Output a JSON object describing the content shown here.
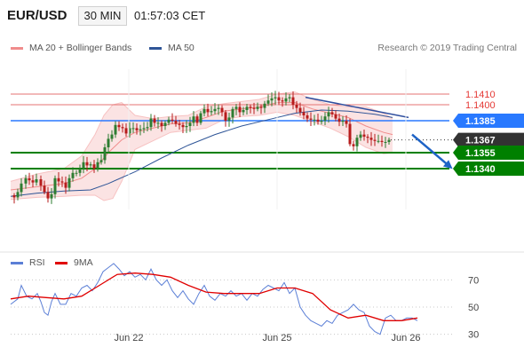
{
  "header": {
    "symbol": "EUR/USD",
    "timeframe": "30 MIN",
    "time": "01:57:03 CET"
  },
  "legend": {
    "bollinger_label": "MA 20 + Bollinger Bands",
    "ma50_label": "MA 50",
    "credit": "Research © 2019 Trading Central"
  },
  "rsi_legend": {
    "rsi_label": "RSI",
    "ma_label": "9MA"
  },
  "colors": {
    "up": "#2e7d32",
    "down": "#b71c1c",
    "bollinger": "#f4a6a6",
    "ma50": "#2f5597",
    "resistance": "#e57373",
    "pivot": "#2979ff",
    "support": "#008000",
    "current": "#333333",
    "rsi": "#5b7fd6",
    "rsi_ma": "#e00000"
  },
  "chart_data": [
    {
      "type": "candlestick",
      "series": [
        {
          "name": "MA 20 + Bollinger Bands"
        },
        {
          "name": "MA 50"
        }
      ],
      "x_ticks": [
        "Jun 22",
        "Jun 25",
        "Jun 26"
      ],
      "ylim": [
        1.1305,
        1.144
      ],
      "levels": [
        {
          "value": 1.141,
          "label": "1.1410",
          "kind": "resistance"
        },
        {
          "value": 1.14,
          "label": "1.1400",
          "kind": "resistance"
        },
        {
          "value": 1.1385,
          "label": "1.1385",
          "kind": "pivot"
        },
        {
          "value": 1.1367,
          "label": "1.1367",
          "kind": "current"
        },
        {
          "value": 1.1355,
          "label": "1.1355",
          "kind": "support"
        },
        {
          "value": 1.134,
          "label": "1.1340",
          "kind": "support"
        }
      ],
      "close_path": [
        [
          0,
          1.1315
        ],
        [
          6,
          1.1313
        ],
        [
          10,
          1.1318
        ],
        [
          14,
          1.1326
        ],
        [
          19,
          1.1331
        ],
        [
          23,
          1.1329
        ],
        [
          27,
          1.1327
        ],
        [
          31,
          1.133
        ],
        [
          36,
          1.1324
        ],
        [
          40,
          1.1318
        ],
        [
          44,
          1.1312
        ],
        [
          48,
          1.1316
        ],
        [
          52,
          1.1331
        ],
        [
          56,
          1.1328
        ],
        [
          60,
          1.1327
        ],
        [
          64,
          1.1322
        ],
        [
          68,
          1.1331
        ],
        [
          72,
          1.1336
        ],
        [
          76,
          1.1336
        ],
        [
          80,
          1.134
        ],
        [
          84,
          1.1346
        ],
        [
          88,
          1.1343
        ],
        [
          92,
          1.1344
        ],
        [
          96,
          1.134
        ],
        [
          100,
          1.1346
        ],
        [
          104,
          1.1348
        ],
        [
          108,
          1.136
        ],
        [
          112,
          1.1368
        ],
        [
          116,
          1.1372
        ],
        [
          120,
          1.1381
        ],
        [
          124,
          1.1379
        ],
        [
          128,
          1.1378
        ],
        [
          132,
          1.1373
        ],
        [
          136,
          1.1378
        ],
        [
          140,
          1.1378
        ],
        [
          144,
          1.1376
        ],
        [
          148,
          1.1377
        ],
        [
          152,
          1.1378
        ],
        [
          156,
          1.1379
        ],
        [
          160,
          1.1387
        ],
        [
          164,
          1.1383
        ],
        [
          168,
          1.1383
        ],
        [
          172,
          1.138
        ],
        [
          176,
          1.1383
        ],
        [
          180,
          1.1386
        ],
        [
          184,
          1.1385
        ],
        [
          188,
          1.1382
        ],
        [
          192,
          1.1381
        ],
        [
          196,
          1.1379
        ],
        [
          200,
          1.138
        ],
        [
          204,
          1.1383
        ],
        [
          208,
          1.1389
        ],
        [
          212,
          1.1383
        ],
        [
          216,
          1.1392
        ],
        [
          220,
          1.1396
        ],
        [
          224,
          1.1393
        ],
        [
          228,
          1.1394
        ],
        [
          232,
          1.1396
        ],
        [
          236,
          1.1397
        ],
        [
          240,
          1.1393
        ],
        [
          244,
          1.1385
        ],
        [
          248,
          1.1388
        ],
        [
          252,
          1.1396
        ],
        [
          256,
          1.1398
        ],
        [
          260,
          1.1393
        ],
        [
          264,
          1.1395
        ],
        [
          268,
          1.1398
        ],
        [
          272,
          1.1397
        ],
        [
          276,
          1.1396
        ],
        [
          280,
          1.1398
        ],
        [
          284,
          1.1397
        ],
        [
          288,
          1.1401
        ],
        [
          292,
          1.1404
        ],
        [
          296,
          1.1406
        ],
        [
          300,
          1.1407
        ],
        [
          304,
          1.1404
        ],
        [
          308,
          1.1403
        ],
        [
          312,
          1.1406
        ],
        [
          316,
          1.1407
        ],
        [
          320,
          1.14
        ],
        [
          324,
          1.1397
        ],
        [
          328,
          1.1393
        ],
        [
          332,
          1.139
        ],
        [
          336,
          1.1387
        ],
        [
          340,
          1.1386
        ],
        [
          344,
          1.1386
        ],
        [
          348,
          1.1384
        ],
        [
          352,
          1.1385
        ],
        [
          356,
          1.1389
        ],
        [
          360,
          1.1393
        ],
        [
          364,
          1.1391
        ],
        [
          368,
          1.1387
        ],
        [
          372,
          1.1384
        ],
        [
          376,
          1.1385
        ],
        [
          380,
          1.1382
        ],
        [
          384,
          1.1363
        ],
        [
          388,
          1.1361
        ],
        [
          392,
          1.1369
        ],
        [
          396,
          1.1372
        ],
        [
          400,
          1.137
        ],
        [
          404,
          1.1369
        ],
        [
          408,
          1.1367
        ],
        [
          412,
          1.1366
        ],
        [
          416,
          1.1366
        ],
        [
          420,
          1.1365
        ],
        [
          424,
          1.1365
        ],
        [
          428,
          1.1367
        ]
      ],
      "ma50": [
        [
          0,
          1.1314
        ],
        [
          30,
          1.1317
        ],
        [
          60,
          1.1319
        ],
        [
          90,
          1.132
        ],
        [
          110,
          1.1326
        ],
        [
          140,
          1.1337
        ],
        [
          170,
          1.135
        ],
        [
          200,
          1.1362
        ],
        [
          230,
          1.1372
        ],
        [
          260,
          1.138
        ],
        [
          290,
          1.1386
        ],
        [
          320,
          1.1392
        ],
        [
          350,
          1.1395
        ],
        [
          380,
          1.1394
        ],
        [
          410,
          1.1391
        ],
        [
          430,
          1.1388
        ]
      ],
      "bollinger_mid": [
        [
          0,
          1.132
        ],
        [
          30,
          1.1323
        ],
        [
          60,
          1.1326
        ],
        [
          80,
          1.1331
        ],
        [
          95,
          1.134
        ],
        [
          110,
          1.1355
        ],
        [
          125,
          1.1367
        ],
        [
          140,
          1.1374
        ],
        [
          160,
          1.1378
        ],
        [
          180,
          1.1382
        ],
        [
          200,
          1.1383
        ],
        [
          220,
          1.1388
        ],
        [
          240,
          1.1394
        ],
        [
          260,
          1.1396
        ],
        [
          280,
          1.1398
        ],
        [
          300,
          1.1402
        ],
        [
          320,
          1.1402
        ],
        [
          340,
          1.1396
        ],
        [
          360,
          1.1392
        ],
        [
          380,
          1.1388
        ],
        [
          400,
          1.138
        ],
        [
          420,
          1.1374
        ],
        [
          430,
          1.1372
        ]
      ],
      "bollinger_upper": [
        [
          0,
          1.1328
        ],
        [
          30,
          1.1335
        ],
        [
          60,
          1.134
        ],
        [
          80,
          1.1352
        ],
        [
          95,
          1.1372
        ],
        [
          105,
          1.139
        ],
        [
          115,
          1.14
        ],
        [
          125,
          1.1402
        ],
        [
          140,
          1.139
        ],
        [
          160,
          1.1387
        ],
        [
          180,
          1.1389
        ],
        [
          200,
          1.139
        ],
        [
          220,
          1.1398
        ],
        [
          240,
          1.1401
        ],
        [
          260,
          1.1403
        ],
        [
          280,
          1.1405
        ],
        [
          300,
          1.141
        ],
        [
          320,
          1.1412
        ],
        [
          340,
          1.1405
        ],
        [
          360,
          1.14
        ],
        [
          380,
          1.1398
        ],
        [
          400,
          1.1398
        ],
        [
          420,
          1.1392
        ],
        [
          430,
          1.1387
        ]
      ],
      "bollinger_lower": [
        [
          0,
          1.1311
        ],
        [
          30,
          1.1313
        ],
        [
          60,
          1.1314
        ],
        [
          80,
          1.1315
        ],
        [
          95,
          1.1315
        ],
        [
          105,
          1.131
        ],
        [
          115,
          1.1312
        ],
        [
          125,
          1.1328
        ],
        [
          140,
          1.1358
        ],
        [
          160,
          1.1366
        ],
        [
          180,
          1.1374
        ],
        [
          200,
          1.1376
        ],
        [
          220,
          1.1378
        ],
        [
          240,
          1.1386
        ],
        [
          260,
          1.1389
        ],
        [
          280,
          1.139
        ],
        [
          300,
          1.1393
        ],
        [
          320,
          1.139
        ],
        [
          340,
          1.1384
        ],
        [
          360,
          1.1378
        ],
        [
          380,
          1.137
        ],
        [
          400,
          1.136
        ],
        [
          420,
          1.1354
        ],
        [
          430,
          1.1355
        ]
      ],
      "trendline": [
        [
          332,
          1.1407
        ],
        [
          448,
          1.1388
        ]
      ],
      "projection": [
        [
          452,
          1.1372
        ],
        [
          493,
          1.1343
        ]
      ]
    },
    {
      "type": "line",
      "series": [
        {
          "name": "RSI"
        },
        {
          "name": "9MA"
        }
      ],
      "ylim": [
        20,
        80
      ],
      "y_ticks": [
        70,
        50,
        30
      ],
      "rsi": [
        [
          0,
          52
        ],
        [
          8,
          56
        ],
        [
          12,
          66
        ],
        [
          18,
          58
        ],
        [
          24,
          56
        ],
        [
          30,
          60
        ],
        [
          34,
          54
        ],
        [
          38,
          46
        ],
        [
          42,
          44
        ],
        [
          46,
          54
        ],
        [
          50,
          60
        ],
        [
          56,
          52
        ],
        [
          62,
          52
        ],
        [
          68,
          60
        ],
        [
          74,
          58
        ],
        [
          80,
          64
        ],
        [
          86,
          66
        ],
        [
          92,
          62
        ],
        [
          98,
          68
        ],
        [
          104,
          76
        ],
        [
          110,
          79
        ],
        [
          116,
          82
        ],
        [
          122,
          78
        ],
        [
          128,
          73
        ],
        [
          134,
          76
        ],
        [
          140,
          72
        ],
        [
          146,
          74
        ],
        [
          152,
          70
        ],
        [
          158,
          78
        ],
        [
          164,
          70
        ],
        [
          170,
          66
        ],
        [
          176,
          70
        ],
        [
          182,
          62
        ],
        [
          188,
          57
        ],
        [
          194,
          62
        ],
        [
          200,
          56
        ],
        [
          206,
          52
        ],
        [
          212,
          60
        ],
        [
          218,
          66
        ],
        [
          224,
          58
        ],
        [
          230,
          55
        ],
        [
          236,
          60
        ],
        [
          242,
          58
        ],
        [
          248,
          62
        ],
        [
          254,
          58
        ],
        [
          260,
          60
        ],
        [
          266,
          55
        ],
        [
          272,
          60
        ],
        [
          278,
          58
        ],
        [
          284,
          63
        ],
        [
          290,
          66
        ],
        [
          296,
          64
        ],
        [
          302,
          62
        ],
        [
          308,
          68
        ],
        [
          314,
          60
        ],
        [
          320,
          64
        ],
        [
          326,
          50
        ],
        [
          332,
          44
        ],
        [
          338,
          40
        ],
        [
          344,
          38
        ],
        [
          350,
          36
        ],
        [
          356,
          40
        ],
        [
          362,
          38
        ],
        [
          368,
          44
        ],
        [
          374,
          46
        ],
        [
          380,
          48
        ],
        [
          386,
          52
        ],
        [
          392,
          48
        ],
        [
          398,
          46
        ],
        [
          404,
          36
        ],
        [
          410,
          32
        ],
        [
          416,
          30
        ],
        [
          422,
          42
        ],
        [
          428,
          44
        ],
        [
          434,
          40
        ],
        [
          440,
          40
        ],
        [
          446,
          42
        ],
        [
          452,
          42
        ],
        [
          458,
          40
        ]
      ],
      "rsi_ma": [
        [
          0,
          56
        ],
        [
          20,
          58
        ],
        [
          40,
          57
        ],
        [
          60,
          56
        ],
        [
          80,
          58
        ],
        [
          100,
          66
        ],
        [
          120,
          74
        ],
        [
          140,
          75
        ],
        [
          160,
          74
        ],
        [
          180,
          72
        ],
        [
          200,
          66
        ],
        [
          220,
          61
        ],
        [
          240,
          60
        ],
        [
          260,
          60
        ],
        [
          280,
          60
        ],
        [
          300,
          64
        ],
        [
          320,
          64
        ],
        [
          340,
          60
        ],
        [
          360,
          48
        ],
        [
          380,
          42
        ],
        [
          400,
          44
        ],
        [
          420,
          40
        ],
        [
          440,
          40
        ],
        [
          458,
          42
        ]
      ]
    }
  ]
}
